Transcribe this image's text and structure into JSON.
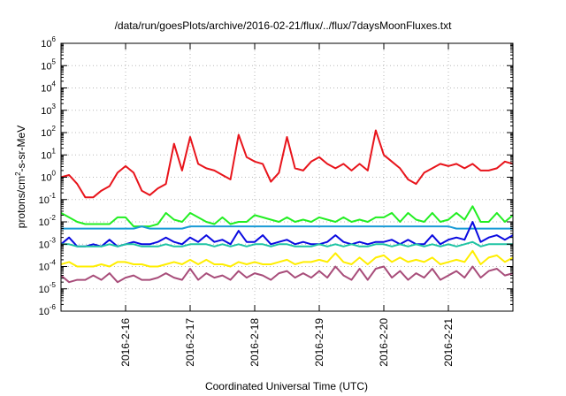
{
  "chart_data": {
    "type": "line",
    "title": "/data/run/goesPlots/archive/2016-02-21/flux/../flux/7daysMoonFluxes.txt",
    "xlabel": "Coordinated Universal Time (UTC)",
    "ylabel": {
      "base": "protons/cm",
      "sup": "2",
      "rest": "-s-sr-MeV"
    },
    "yscale": "log",
    "ylim_exponents": [
      -6,
      6
    ],
    "xlim": [
      "2016-02-15T00:00",
      "2016-02-22T00:00"
    ],
    "x_ticks": [
      {
        "label": "2016-2-16",
        "x": "2016-02-16T00:00"
      },
      {
        "label": "2016-2-17",
        "x": "2016-02-17T00:00"
      },
      {
        "label": "2016-2-18",
        "x": "2016-02-18T00:00"
      },
      {
        "label": "2016-2-19",
        "x": "2016-02-19T00:00"
      },
      {
        "label": "2016-2-20",
        "x": "2016-02-20T00:00"
      },
      {
        "label": "2016-2-21",
        "x": "2016-02-21T00:00"
      }
    ],
    "y_ticks": [
      {
        "base": "10",
        "exp": "-6",
        "value": -6
      },
      {
        "base": "10",
        "exp": "-5",
        "value": -5
      },
      {
        "base": "10",
        "exp": "-4",
        "value": -4
      },
      {
        "base": "10",
        "exp": "-3",
        "value": -3
      },
      {
        "base": "10",
        "exp": "-2",
        "value": -2
      },
      {
        "base": "10",
        "exp": "-1",
        "value": -1
      },
      {
        "base": "10",
        "exp": "0",
        "value": 0
      },
      {
        "base": "10",
        "exp": "1",
        "value": 1
      },
      {
        "base": "10",
        "exp": "2",
        "value": 2
      },
      {
        "base": "10",
        "exp": "3",
        "value": 3
      },
      {
        "base": "10",
        "exp": "4",
        "value": 4
      },
      {
        "base": "10",
        "exp": "5",
        "value": 5
      },
      {
        "base": "10",
        "exp": "6",
        "value": 6
      }
    ],
    "grid": true,
    "legend": "none",
    "series_x": [
      "2016-02-15T00:00",
      "2016-02-15T03:00",
      "2016-02-15T06:00",
      "2016-02-15T09:00",
      "2016-02-15T12:00",
      "2016-02-15T15:00",
      "2016-02-15T18:00",
      "2016-02-15T21:00",
      "2016-02-16T00:00",
      "2016-02-16T03:00",
      "2016-02-16T06:00",
      "2016-02-16T09:00",
      "2016-02-16T12:00",
      "2016-02-16T15:00",
      "2016-02-16T18:00",
      "2016-02-16T21:00",
      "2016-02-17T00:00",
      "2016-02-17T03:00",
      "2016-02-17T06:00",
      "2016-02-17T09:00",
      "2016-02-17T12:00",
      "2016-02-17T15:00",
      "2016-02-17T18:00",
      "2016-02-17T21:00",
      "2016-02-18T00:00",
      "2016-02-18T03:00",
      "2016-02-18T06:00",
      "2016-02-18T09:00",
      "2016-02-18T12:00",
      "2016-02-18T15:00",
      "2016-02-18T18:00",
      "2016-02-18T21:00",
      "2016-02-19T00:00",
      "2016-02-19T03:00",
      "2016-02-19T06:00",
      "2016-02-19T09:00",
      "2016-02-19T12:00",
      "2016-02-19T15:00",
      "2016-02-19T18:00",
      "2016-02-19T21:00",
      "2016-02-20T00:00",
      "2016-02-20T03:00",
      "2016-02-20T06:00",
      "2016-02-20T09:00",
      "2016-02-20T12:00",
      "2016-02-20T15:00",
      "2016-02-20T18:00",
      "2016-02-20T21:00",
      "2016-02-21T00:00",
      "2016-02-21T03:00",
      "2016-02-21T06:00",
      "2016-02-21T09:00",
      "2016-02-21T12:00",
      "2016-02-21T15:00",
      "2016-02-21T18:00",
      "2016-02-21T21:00",
      "2016-02-22T00:00"
    ],
    "series": [
      {
        "color": "#e8141b",
        "log10_values": [
          0.0,
          0.1,
          -0.3,
          -0.9,
          -0.9,
          -0.6,
          -0.4,
          0.2,
          0.5,
          0.2,
          -0.6,
          -0.8,
          -0.5,
          -0.3,
          1.5,
          0.3,
          1.8,
          0.6,
          0.4,
          0.3,
          0.1,
          -0.1,
          1.9,
          0.9,
          0.7,
          0.6,
          -0.2,
          0.2,
          1.8,
          0.4,
          0.3,
          0.7,
          0.9,
          0.6,
          0.4,
          0.6,
          0.3,
          0.6,
          0.3,
          2.1,
          1.0,
          0.7,
          0.4,
          -0.1,
          -0.3,
          0.2,
          0.4,
          0.6,
          0.5,
          0.6,
          0.4,
          0.6,
          0.3,
          0.3,
          0.4,
          0.7,
          0.6
        ]
      },
      {
        "color": "#22ee22",
        "log10_values": [
          -1.6,
          -1.8,
          -2.0,
          -2.1,
          -2.1,
          -2.1,
          -2.1,
          -1.8,
          -1.8,
          -2.2,
          -2.2,
          -2.2,
          -2.1,
          -1.6,
          -1.9,
          -2.0,
          -1.6,
          -1.8,
          -2.0,
          -2.1,
          -1.8,
          -2.1,
          -2.0,
          -2.0,
          -1.7,
          -1.8,
          -1.9,
          -2.0,
          -1.8,
          -2.0,
          -1.9,
          -2.0,
          -1.8,
          -1.9,
          -2.0,
          -1.8,
          -2.0,
          -1.9,
          -2.0,
          -1.8,
          -1.8,
          -1.6,
          -2.0,
          -1.6,
          -1.9,
          -2.0,
          -1.6,
          -2.0,
          -1.9,
          -1.6,
          -1.9,
          -1.3,
          -2.0,
          -2.0,
          -1.6,
          -2.0,
          -1.7
        ]
      },
      {
        "color": "#1a9bd6",
        "log10_values": [
          -2.3,
          -2.3,
          -2.3,
          -2.3,
          -2.3,
          -2.3,
          -2.3,
          -2.3,
          -2.3,
          -2.3,
          -2.2,
          -2.3,
          -2.3,
          -2.3,
          -2.3,
          -2.3,
          -2.2,
          -2.2,
          -2.2,
          -2.2,
          -2.2,
          -2.2,
          -2.2,
          -2.2,
          -2.2,
          -2.2,
          -2.2,
          -2.2,
          -2.2,
          -2.2,
          -2.2,
          -2.2,
          -2.2,
          -2.2,
          -2.2,
          -2.2,
          -2.2,
          -2.2,
          -2.2,
          -2.2,
          -2.2,
          -2.2,
          -2.2,
          -2.2,
          -2.2,
          -2.2,
          -2.2,
          -2.2,
          -2.2,
          -2.3,
          -2.3,
          -2.3,
          -2.3,
          -2.3,
          -2.3,
          -2.3,
          -2.3
        ]
      },
      {
        "color": "#0a0ae0",
        "log10_values": [
          -3.0,
          -2.7,
          -3.1,
          -3.1,
          -3.0,
          -3.1,
          -2.8,
          -3.1,
          -3.0,
          -2.9,
          -3.0,
          -3.0,
          -2.9,
          -2.7,
          -2.9,
          -3.0,
          -2.7,
          -2.9,
          -2.6,
          -2.9,
          -2.8,
          -3.0,
          -2.4,
          -2.9,
          -2.9,
          -2.6,
          -3.0,
          -2.9,
          -2.8,
          -3.0,
          -2.9,
          -3.0,
          -3.0,
          -2.9,
          -2.6,
          -2.9,
          -3.0,
          -2.9,
          -3.0,
          -2.9,
          -2.9,
          -2.8,
          -3.0,
          -2.8,
          -3.0,
          -3.0,
          -2.6,
          -3.0,
          -2.8,
          -2.7,
          -2.8,
          -2.0,
          -2.9,
          -2.7,
          -2.6,
          -2.8,
          -2.6
        ]
      },
      {
        "color": "#1fc4a4",
        "log10_values": [
          -3.0,
          -3.0,
          -3.1,
          -3.1,
          -3.1,
          -3.1,
          -3.0,
          -3.1,
          -3.0,
          -3.0,
          -3.1,
          -3.1,
          -3.1,
          -3.0,
          -3.1,
          -3.1,
          -3.0,
          -3.0,
          -3.0,
          -3.1,
          -3.0,
          -3.1,
          -3.0,
          -3.1,
          -3.0,
          -3.0,
          -3.1,
          -3.0,
          -3.0,
          -3.1,
          -3.1,
          -3.1,
          -3.0,
          -3.1,
          -3.0,
          -3.1,
          -3.0,
          -3.1,
          -3.1,
          -3.0,
          -3.0,
          -3.1,
          -3.0,
          -3.1,
          -3.0,
          -3.1,
          -3.0,
          -3.1,
          -3.0,
          -3.1,
          -3.0,
          -2.9,
          -3.1,
          -3.0,
          -3.0,
          -3.0,
          -3.0
        ]
      },
      {
        "color": "#ffee00",
        "log10_values": [
          -3.9,
          -3.8,
          -4.0,
          -4.0,
          -4.0,
          -3.9,
          -4.0,
          -3.8,
          -3.8,
          -3.9,
          -3.9,
          -4.0,
          -4.0,
          -3.9,
          -3.8,
          -3.9,
          -3.7,
          -3.9,
          -3.7,
          -3.9,
          -3.9,
          -4.0,
          -3.8,
          -3.9,
          -3.8,
          -3.9,
          -3.9,
          -3.8,
          -3.7,
          -3.9,
          -3.8,
          -3.8,
          -3.7,
          -3.8,
          -3.4,
          -3.8,
          -3.9,
          -3.6,
          -3.9,
          -3.6,
          -3.5,
          -3.8,
          -3.6,
          -3.8,
          -3.7,
          -3.8,
          -3.6,
          -3.9,
          -3.8,
          -3.7,
          -3.8,
          -3.3,
          -3.9,
          -3.6,
          -3.5,
          -3.8,
          -3.6
        ]
      },
      {
        "color": "#a84d7a",
        "log10_values": [
          -4.4,
          -4.7,
          -4.6,
          -4.6,
          -4.4,
          -4.6,
          -4.3,
          -4.7,
          -4.5,
          -4.4,
          -4.6,
          -4.6,
          -4.5,
          -4.3,
          -4.5,
          -4.6,
          -4.1,
          -4.6,
          -4.3,
          -4.5,
          -4.4,
          -4.6,
          -4.2,
          -4.5,
          -4.3,
          -4.4,
          -4.6,
          -4.3,
          -4.2,
          -4.5,
          -4.3,
          -4.5,
          -4.2,
          -4.5,
          -4.0,
          -4.4,
          -4.6,
          -4.1,
          -4.6,
          -4.1,
          -4.0,
          -4.5,
          -4.2,
          -4.6,
          -4.3,
          -4.5,
          -4.1,
          -4.6,
          -4.4,
          -4.2,
          -4.5,
          -4.0,
          -4.5,
          -4.2,
          -4.1,
          -4.4,
          -4.3
        ]
      }
    ]
  }
}
